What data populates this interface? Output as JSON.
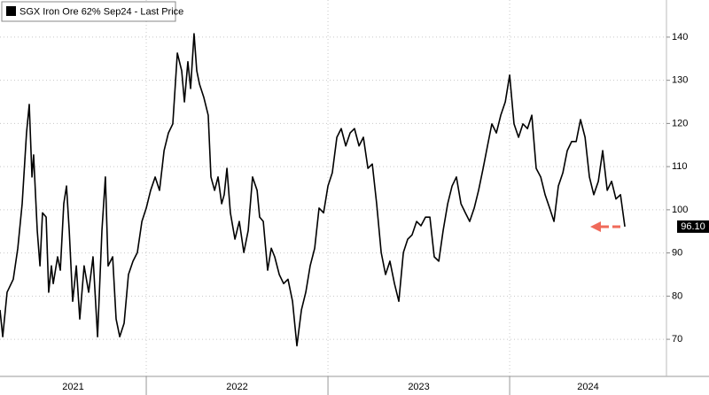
{
  "chart_data": {
    "type": "line",
    "title": "SGX Iron Ore 62% Sep24 - Last Price",
    "x": [
      2021.195,
      2021.21,
      2021.234,
      2021.268,
      2021.293,
      2021.317,
      2021.341,
      2021.356,
      2021.371,
      2021.38,
      2021.4,
      2021.415,
      2021.429,
      2021.449,
      2021.463,
      2021.478,
      2021.488,
      2021.512,
      2021.527,
      2021.546,
      2021.561,
      2021.576,
      2021.595,
      2021.615,
      2021.634,
      2021.658,
      2021.683,
      2021.707,
      2021.732,
      2021.756,
      2021.775,
      2021.79,
      2021.815,
      2021.834,
      2021.854,
      2021.878,
      2021.902,
      2021.927,
      2021.951,
      2021.976,
      2022.0,
      2022.024,
      2022.049,
      2022.073,
      2022.098,
      2022.122,
      2022.146,
      2022.171,
      2022.195,
      2022.21,
      2022.229,
      2022.244,
      2022.263,
      2022.278,
      2022.293,
      2022.317,
      2022.341,
      2022.356,
      2022.376,
      2022.395,
      2022.415,
      2022.429,
      2022.444,
      2022.463,
      2022.488,
      2022.512,
      2022.537,
      2022.561,
      2022.585,
      2022.61,
      2022.624,
      2022.644,
      2022.668,
      2022.688,
      2022.707,
      2022.732,
      2022.756,
      2022.78,
      2022.805,
      2022.829,
      2022.854,
      2022.878,
      2022.902,
      2022.927,
      2022.951,
      2022.976,
      2023.0,
      2023.024,
      2023.049,
      2023.073,
      2023.098,
      2023.122,
      2023.146,
      2023.171,
      2023.195,
      2023.22,
      2023.244,
      2023.268,
      2023.293,
      2023.317,
      2023.341,
      2023.366,
      2023.39,
      2023.415,
      2023.439,
      2023.463,
      2023.488,
      2023.512,
      2023.537,
      2023.561,
      2023.585,
      2023.61,
      2023.634,
      2023.659,
      2023.683,
      2023.707,
      2023.732,
      2023.756,
      2023.78,
      2023.805,
      2023.829,
      2023.854,
      2023.878,
      2023.902,
      2023.927,
      2023.951,
      2023.976,
      2024.0,
      2024.024,
      2024.049,
      2024.073,
      2024.098,
      2024.122,
      2024.146,
      2024.171,
      2024.195,
      2024.22,
      2024.244,
      2024.268,
      2024.293,
      2024.317,
      2024.341,
      2024.366,
      2024.39,
      2024.415,
      2024.439,
      2024.463,
      2024.488,
      2024.512,
      2024.537,
      2024.561,
      2024.585,
      2024.61,
      2024.634
    ],
    "series": [
      {
        "name": "SGX Iron Ore 62% Sep24 - Last Price",
        "color": "#000000",
        "values": [
          76.8,
          70.6,
          80.9,
          83.9,
          91.1,
          101.4,
          117.8,
          124.4,
          107.6,
          112.7,
          95.2,
          87.0,
          99.3,
          98.3,
          80.9,
          87.0,
          82.9,
          89.1,
          86.0,
          101.4,
          105.5,
          95.2,
          78.8,
          87.0,
          74.7,
          87.0,
          80.9,
          89.1,
          70.6,
          95.2,
          107.6,
          87.0,
          89.1,
          74.7,
          70.6,
          73.7,
          85.0,
          88.1,
          90.1,
          97.3,
          100.4,
          104.5,
          107.6,
          104.5,
          113.7,
          117.8,
          119.9,
          136.3,
          132.2,
          125.0,
          134.3,
          128.1,
          140.8,
          132.2,
          129.1,
          126.0,
          121.9,
          107.6,
          104.5,
          107.6,
          101.4,
          103.5,
          109.6,
          99.3,
          93.2,
          97.3,
          90.1,
          95.2,
          107.6,
          104.5,
          98.3,
          97.3,
          86.0,
          91.1,
          89.1,
          85.0,
          82.9,
          83.9,
          78.8,
          68.5,
          76.8,
          80.9,
          87.0,
          91.1,
          100.4,
          99.3,
          105.5,
          108.6,
          116.8,
          118.8,
          114.8,
          117.8,
          118.8,
          114.8,
          116.8,
          109.6,
          110.6,
          101.4,
          90.1,
          85.0,
          88.1,
          82.9,
          78.8,
          90.1,
          93.2,
          94.2,
          97.3,
          96.3,
          98.3,
          98.3,
          89.1,
          88.1,
          95.2,
          101.4,
          105.5,
          107.6,
          101.4,
          99.3,
          97.3,
          100.4,
          104.5,
          109.6,
          114.8,
          119.9,
          117.8,
          121.9,
          125.0,
          131.2,
          119.9,
          116.8,
          119.9,
          118.8,
          121.9,
          109.6,
          107.6,
          103.5,
          100.4,
          97.3,
          105.5,
          108.6,
          113.7,
          115.8,
          115.8,
          120.9,
          116.8,
          107.6,
          103.5,
          106.6,
          113.7,
          104.5,
          106.6,
          102.5,
          103.5,
          96.1
        ]
      }
    ],
    "last_price_label": {
      "value": 96.1,
      "label": "96.10"
    },
    "xlim": [
      2021.195,
      2024.863
    ],
    "xticks": [
      2022,
      2023,
      2024
    ],
    "x_period_labels": [
      {
        "value": 2021,
        "label": "2021"
      },
      {
        "value": 2022,
        "label": "2022"
      },
      {
        "value": 2023,
        "label": "2023"
      },
      {
        "value": 2024,
        "label": "2024"
      }
    ],
    "ylim": [
      61.4,
      148.6
    ],
    "yticks": [
      70,
      80,
      90,
      100,
      110,
      120,
      130,
      140
    ],
    "grid": true
  }
}
